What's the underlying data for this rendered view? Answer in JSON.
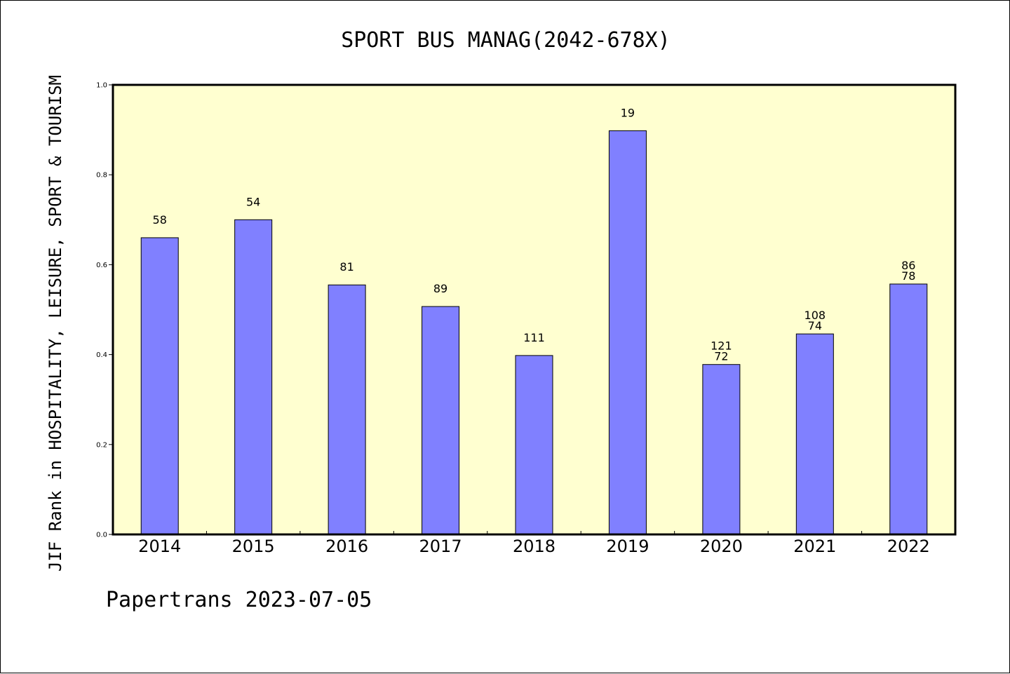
{
  "chart_data": {
    "type": "bar",
    "title": "SPORT BUS MANAG(2042-678X)",
    "xlabel": "",
    "ylabel": "JIF Rank in HOSPITALITY, LEISURE, SPORT & TOURISM",
    "ylim": [
      0,
      1.0
    ],
    "yticks": [
      "0.0",
      "0.2",
      "0.4",
      "0.6",
      "0.8",
      "1.0"
    ],
    "categories": [
      "2014",
      "2015",
      "2016",
      "2017",
      "2018",
      "2019",
      "2020",
      "2021",
      "2022"
    ],
    "values": [
      0.66,
      0.7,
      0.555,
      0.507,
      0.398,
      0.898,
      0.378,
      0.446,
      0.557
    ],
    "bar_labels": [
      [
        "58"
      ],
      [
        "54"
      ],
      [
        "81"
      ],
      [
        "89"
      ],
      [
        "111"
      ],
      [
        "19"
      ],
      [
        "121",
        "72"
      ],
      [
        "108",
        "74"
      ],
      [
        "86",
        "78"
      ]
    ],
    "grid": false,
    "bar_color": "#8080ff",
    "plot_background": "#ffffd0"
  },
  "footer": "Papertrans 2023-07-05"
}
